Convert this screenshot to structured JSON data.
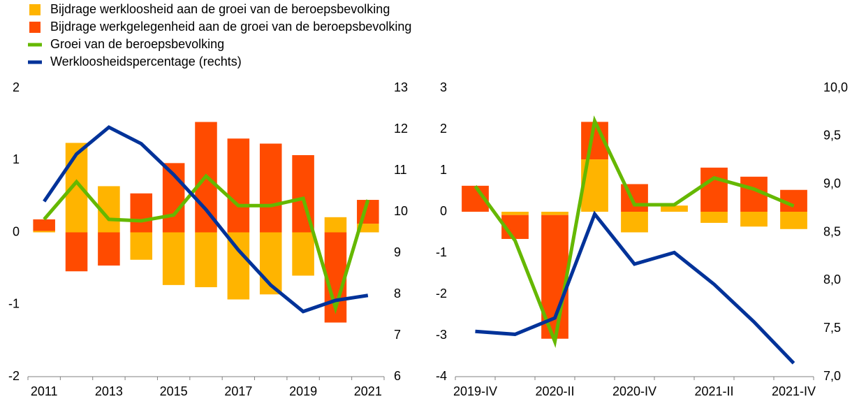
{
  "chart_data": [
    {
      "type": "combo",
      "categories": [
        "2011",
        null,
        "2013",
        null,
        "2015",
        null,
        "2017",
        null,
        "2019",
        null,
        "2021"
      ],
      "series": [
        {
          "name": "Bijdrage werkloosheid aan de groei van de beroepsbevolking",
          "type": "bar",
          "color": "#ffb400",
          "values": [
            0.02,
            1.24,
            0.64,
            -0.38,
            -0.73,
            -0.76,
            -0.93,
            -0.86,
            -0.6,
            0.21,
            0.12
          ]
        },
        {
          "name": "Bijdrage werkgelegenheid aan de groei van de beroepsbevolking",
          "type": "bar",
          "color": "#ff4b00",
          "values": [
            0.16,
            -0.54,
            -0.46,
            0.54,
            0.96,
            1.53,
            1.3,
            1.23,
            1.07,
            -1.25,
            0.33
          ]
        },
        {
          "name": "Groei van de beroepsbevolking",
          "type": "line",
          "color": "#65b800",
          "values": [
            0.18,
            0.7,
            0.18,
            0.16,
            0.24,
            0.78,
            0.37,
            0.37,
            0.47,
            -1.05,
            0.45
          ]
        },
        {
          "name": "Werkloosheidspercentage (rechts)",
          "type": "line",
          "color": "#003299",
          "axis": "y2",
          "values": [
            10.25,
            11.4,
            12.05,
            11.65,
            10.9,
            10.05,
            9.07,
            8.22,
            7.58,
            7.85,
            7.97
          ]
        }
      ],
      "ylim": [
        -2,
        2
      ],
      "yticks": [
        -2,
        -1,
        0,
        1,
        2
      ],
      "y2lim": [
        6,
        13
      ],
      "y2ticks": [
        6,
        7,
        8,
        9,
        10,
        11,
        12,
        13
      ],
      "legend": "top-left"
    },
    {
      "type": "combo",
      "categories": [
        "2019-IV",
        null,
        "2020-II",
        null,
        "2020-IV",
        null,
        "2021-II",
        null,
        "2021-IV"
      ],
      "series": [
        {
          "type": "bar",
          "color": "#ffb400",
          "values": [
            0,
            -0.08,
            -0.08,
            1.27,
            -0.5,
            0.15,
            -0.27,
            -0.36,
            -0.42
          ]
        },
        {
          "type": "bar",
          "color": "#ff4b00",
          "values": [
            0.63,
            -0.58,
            -3.0,
            0.91,
            0.67,
            0,
            1.07,
            0.85,
            0.53
          ]
        },
        {
          "type": "line",
          "color": "#65b800",
          "values": [
            0.62,
            -0.7,
            -3.15,
            2.2,
            0.17,
            0.17,
            0.82,
            0.55,
            0.14
          ]
        },
        {
          "type": "line",
          "color": "#003299",
          "axis": "y2",
          "values": [
            7.47,
            7.44,
            7.61,
            8.69,
            8.17,
            8.29,
            7.96,
            7.57,
            7.14
          ]
        }
      ],
      "ylim": [
        -4,
        3
      ],
      "yticks": [
        -4,
        -3,
        -2,
        -1,
        0,
        1,
        2,
        3
      ],
      "y2lim": [
        7,
        10
      ],
      "y2ticks": [
        {
          "value": 7,
          "label": "7,0"
        },
        {
          "value": 7.5,
          "label": "7,5"
        },
        {
          "value": 8,
          "label": "8,0"
        },
        {
          "value": 8.5,
          "label": "8,5"
        },
        {
          "value": 9,
          "label": "9,0"
        },
        {
          "value": 9.5,
          "label": "9,5"
        },
        {
          "value": 10,
          "label": "10,0"
        }
      ]
    }
  ]
}
